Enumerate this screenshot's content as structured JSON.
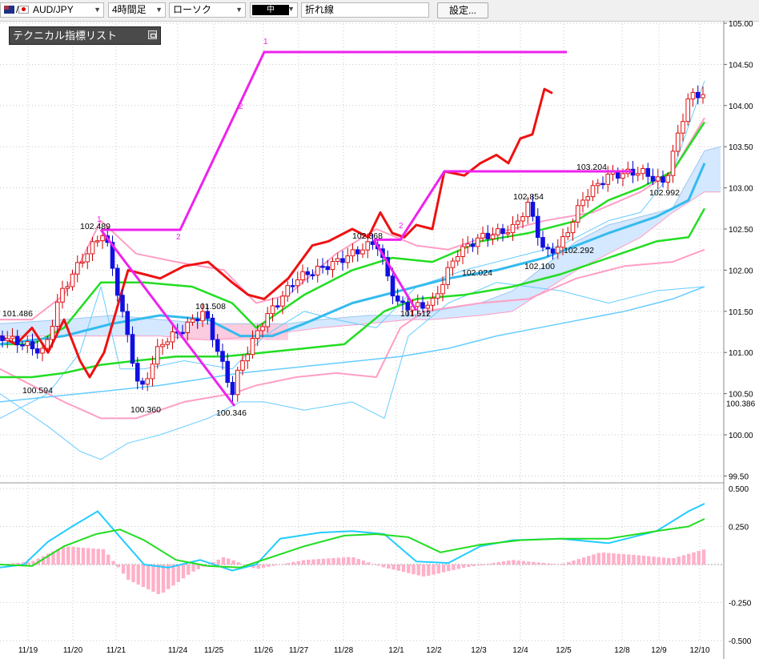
{
  "toolbar": {
    "symbol": "AUD/JPY",
    "timeframe": "4時間足",
    "chart_style": "ローソク",
    "thickness": "中",
    "line_type": "折れ線",
    "settings": "設定..."
  },
  "indicator_panel": {
    "title": "テクニカル指標リスト"
  },
  "colors": {
    "candle_up": "#e01010",
    "candle_down": "#1010e0",
    "zigzag": "#ee22ee",
    "chikou": "#ee1111",
    "bollinger_outer": "#66ccff",
    "bollinger_inner": "#ff9ec5",
    "ma_green": "#22dd22",
    "ma_blue": "#33bbee",
    "cloud_up": "#cce4ff",
    "cloud_down": "#ffc8dc",
    "macd": "#22ccff",
    "signal": "#22dd22",
    "histogram": "#ffb0c8"
  },
  "chart_data": {
    "type": "candlestick",
    "symbol": "AUD/JPY",
    "timeframe": "4時間足",
    "x_ticks": [
      "11/19",
      "11/20",
      "11/21",
      "11/24",
      "11/25",
      "11/26",
      "11/27",
      "11/28",
      "12/1",
      "12/2",
      "12/3",
      "12/4",
      "12/5",
      "12/8",
      "12/9",
      "12/10"
    ],
    "y_ticks": [
      "105.00",
      "104.50",
      "104.00",
      "103.50",
      "103.00",
      "102.50",
      "102.00",
      "101.50",
      "101.00",
      "100.50",
      "100.00",
      "99.50"
    ],
    "ylim": [
      99.5,
      105.1
    ],
    "current_price": "100.386",
    "annotations": [
      {
        "label": "101.486",
        "price": 101.486
      },
      {
        "label": "100.594",
        "price": 100.594
      },
      {
        "label": "102.489",
        "price": 102.489
      },
      {
        "label": "100.360",
        "price": 100.36
      },
      {
        "label": "101.508",
        "price": 101.508
      },
      {
        "label": "100.346",
        "price": 100.346
      },
      {
        "label": "102.368",
        "price": 102.368
      },
      {
        "label": "101.512",
        "price": 101.512
      },
      {
        "label": "102.024",
        "price": 102.024
      },
      {
        "label": "102.854",
        "price": 102.854
      },
      {
        "label": "102.100",
        "price": 102.1
      },
      {
        "label": "102.292",
        "price": 102.292
      },
      {
        "label": "103.204",
        "price": 103.204
      },
      {
        "label": "102.992",
        "price": 102.992
      }
    ],
    "wave_labels": [
      "1",
      "2",
      "1",
      "2",
      "1",
      "2"
    ],
    "oscillator": {
      "y_ticks": [
        "0.500",
        "0.250",
        "-0.250",
        "-0.500"
      ],
      "ylim": [
        -0.5,
        0.5
      ]
    }
  }
}
